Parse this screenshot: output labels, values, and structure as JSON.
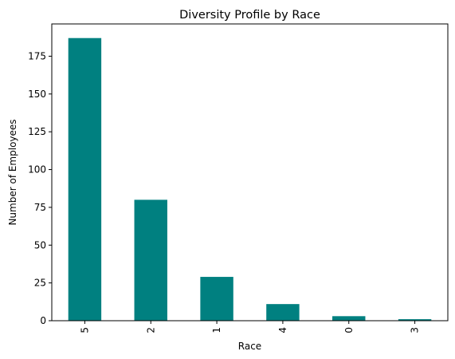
{
  "chart_data": {
    "type": "bar",
    "title": "Diversity Profile by Race",
    "xlabel": "Race",
    "ylabel": "Number of Employees",
    "categories": [
      "5",
      "2",
      "1",
      "4",
      "0",
      "3"
    ],
    "values": [
      187,
      80,
      29,
      11,
      3,
      1
    ],
    "ylim": [
      0,
      196.35
    ],
    "yticks": [
      0,
      25,
      50,
      75,
      100,
      125,
      150,
      175
    ],
    "x_tick_rotation": "vertical",
    "grid": false,
    "legend": "none",
    "bar_color": "#008080"
  }
}
